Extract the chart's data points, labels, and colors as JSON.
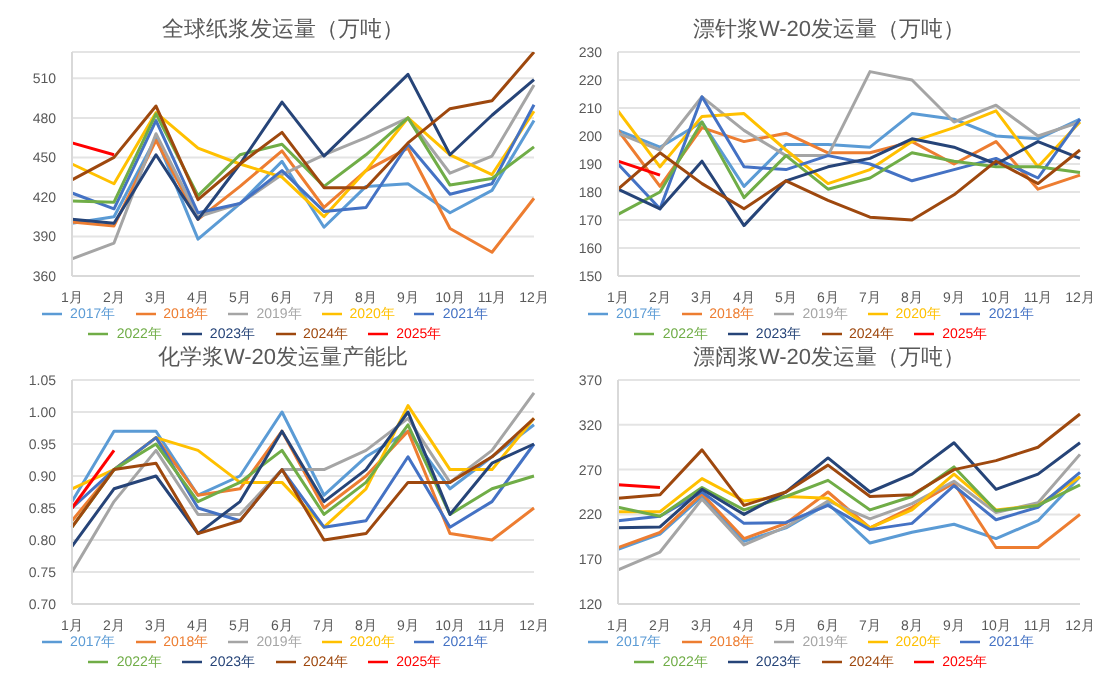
{
  "chart_data": [
    {
      "type": "line",
      "title": "全球纸浆发运量（万吨）",
      "categories": [
        "1月",
        "2月",
        "3月",
        "4月",
        "5月",
        "6月",
        "7月",
        "8月",
        "9月",
        "10月",
        "11月",
        "12月"
      ],
      "ylim": [
        360,
        530
      ],
      "yticks": [
        360,
        390,
        420,
        450,
        480,
        510
      ],
      "grid": "y",
      "legend": "bottom",
      "marker": "none",
      "line_style": "solid",
      "series": [
        {
          "name": "2017年",
          "color": "#5b9bd5",
          "values": [
            400,
            405,
            465,
            388,
            415,
            447,
            397,
            428,
            430,
            408,
            425,
            478
          ]
        },
        {
          "name": "2018年",
          "color": "#ed7d31",
          "values": [
            401,
            398,
            463,
            403,
            428,
            455,
            412,
            440,
            457,
            396,
            378,
            419
          ]
        },
        {
          "name": "2019年",
          "color": "#a5a5a5",
          "values": [
            373,
            385,
            468,
            405,
            415,
            437,
            452,
            465,
            480,
            438,
            451,
            505
          ]
        },
        {
          "name": "2020年",
          "color": "#ffc000",
          "values": [
            445,
            430,
            484,
            457,
            445,
            435,
            405,
            440,
            480,
            452,
            437,
            485
          ]
        },
        {
          "name": "2021年",
          "color": "#4472c4",
          "values": [
            423,
            411,
            478,
            408,
            415,
            440,
            409,
            412,
            460,
            422,
            430,
            490
          ]
        },
        {
          "name": "2022年",
          "color": "#70ad47",
          "values": [
            417,
            416,
            483,
            421,
            452,
            460,
            428,
            452,
            480,
            429,
            434,
            458
          ]
        },
        {
          "name": "2023年",
          "color": "#264478",
          "values": [
            403,
            400,
            452,
            403,
            445,
            492,
            451,
            482,
            513,
            452,
            482,
            509
          ]
        },
        {
          "name": "2024年",
          "color": "#9e480e",
          "values": [
            433,
            450,
            489,
            418,
            445,
            469,
            427,
            427,
            461,
            487,
            493,
            530
          ]
        },
        {
          "name": "2025年",
          "color": "#ff0000",
          "values": [
            461,
            452,
            null,
            null,
            null,
            null,
            null,
            null,
            null,
            null,
            null,
            null
          ]
        }
      ]
    },
    {
      "type": "line",
      "title": "漂针浆W-20发运量（万吨）",
      "categories": [
        "1月",
        "2月",
        "3月",
        "4月",
        "5月",
        "6月",
        "7月",
        "8月",
        "9月",
        "10月",
        "11月",
        "12月"
      ],
      "ylim": [
        150,
        230
      ],
      "yticks": [
        150,
        160,
        170,
        180,
        190,
        200,
        210,
        220,
        230
      ],
      "grid": "y",
      "legend": "bottom",
      "marker": "none",
      "line_style": "solid",
      "series": [
        {
          "name": "2017年",
          "color": "#5b9bd5",
          "values": [
            202,
            196,
            205,
            182,
            197,
            197,
            196,
            208,
            206,
            200,
            199,
            206
          ]
        },
        {
          "name": "2018年",
          "color": "#ed7d31",
          "values": [
            202,
            182,
            203,
            198,
            201,
            194,
            194,
            198,
            190,
            198,
            181,
            186
          ]
        },
        {
          "name": "2019年",
          "color": "#a5a5a5",
          "values": [
            201,
            195,
            214,
            202,
            193,
            193,
            223,
            220,
            205,
            211,
            200,
            205
          ]
        },
        {
          "name": "2020年",
          "color": "#ffc000",
          "values": [
            209,
            189,
            207,
            208,
            195,
            183,
            188,
            198,
            203,
            209,
            189,
            205
          ]
        },
        {
          "name": "2021年",
          "color": "#4472c4",
          "values": [
            190,
            174,
            214,
            189,
            188,
            193,
            190,
            184,
            188,
            192,
            185,
            206
          ]
        },
        {
          "name": "2022年",
          "color": "#70ad47",
          "values": [
            172,
            180,
            205,
            178,
            193,
            181,
            185,
            194,
            191,
            189,
            189,
            187
          ]
        },
        {
          "name": "2023年",
          "color": "#264478",
          "values": [
            181,
            174,
            191,
            168,
            184,
            189,
            192,
            199,
            196,
            190,
            198,
            192
          ]
        },
        {
          "name": "2024年",
          "color": "#9e480e",
          "values": [
            181,
            194,
            183,
            174,
            184,
            177,
            171,
            170,
            179,
            191,
            183,
            195
          ]
        },
        {
          "name": "2025年",
          "color": "#ff0000",
          "values": [
            191,
            186,
            null,
            null,
            null,
            null,
            null,
            null,
            null,
            null,
            null,
            null
          ]
        }
      ]
    },
    {
      "type": "line",
      "title": "化学浆W-20发运量产能比",
      "categories": [
        "1月",
        "2月",
        "3月",
        "4月",
        "5月",
        "6月",
        "7月",
        "8月",
        "9月",
        "10月",
        "11月",
        "12月"
      ],
      "ylim": [
        0.7,
        1.05
      ],
      "yticks": [
        {
          "value": 0.7,
          "label": "0.70"
        },
        {
          "value": 0.75,
          "label": "0.75"
        },
        {
          "value": 0.8,
          "label": "0.80"
        },
        {
          "value": 0.85,
          "label": "0.85"
        },
        {
          "value": 0.9,
          "label": "0.90"
        },
        {
          "value": 0.95,
          "label": "0.95"
        },
        {
          "value": 1.0,
          "label": "1.00"
        },
        {
          "value": 1.05,
          "label": "1.05"
        }
      ],
      "grid": "y",
      "legend": "bottom",
      "marker": "none",
      "line_style": "solid",
      "series": [
        {
          "name": "2017年",
          "color": "#5b9bd5",
          "values": [
            0.86,
            0.97,
            0.97,
            0.87,
            0.9,
            1.0,
            0.87,
            0.93,
            0.97,
            0.88,
            0.93,
            0.98
          ]
        },
        {
          "name": "2018年",
          "color": "#ed7d31",
          "values": [
            0.83,
            0.91,
            0.96,
            0.87,
            0.88,
            0.97,
            0.85,
            0.9,
            0.97,
            0.81,
            0.8,
            0.85
          ]
        },
        {
          "name": "2019年",
          "color": "#a5a5a5",
          "values": [
            0.75,
            0.86,
            0.94,
            0.84,
            0.84,
            0.91,
            0.91,
            0.94,
            0.99,
            0.89,
            0.94,
            1.03
          ]
        },
        {
          "name": "2020年",
          "color": "#ffc000",
          "values": [
            0.88,
            0.91,
            0.96,
            0.94,
            0.89,
            0.89,
            0.82,
            0.88,
            1.01,
            0.91,
            0.91,
            0.99
          ]
        },
        {
          "name": "2021年",
          "color": "#4472c4",
          "values": [
            0.85,
            0.91,
            0.96,
            0.85,
            0.83,
            0.91,
            0.82,
            0.83,
            0.93,
            0.82,
            0.86,
            0.95
          ]
        },
        {
          "name": "2022年",
          "color": "#70ad47",
          "values": [
            0.82,
            0.91,
            0.95,
            0.86,
            0.89,
            0.94,
            0.84,
            0.89,
            0.98,
            0.84,
            0.88,
            0.9
          ]
        },
        {
          "name": "2023年",
          "color": "#264478",
          "values": [
            0.79,
            0.88,
            0.9,
            0.81,
            0.86,
            0.97,
            0.86,
            0.91,
            1.0,
            0.84,
            0.92,
            0.95
          ]
        },
        {
          "name": "2024年",
          "color": "#9e480e",
          "values": [
            0.82,
            0.91,
            0.92,
            0.81,
            0.83,
            0.91,
            0.8,
            0.81,
            0.89,
            0.89,
            0.93,
            0.99
          ]
        },
        {
          "name": "2025年",
          "color": "#ff0000",
          "values": [
            0.85,
            0.94,
            null,
            null,
            null,
            null,
            null,
            null,
            null,
            null,
            null,
            null
          ]
        }
      ]
    },
    {
      "type": "line",
      "title": "漂阔浆W-20发运量（万吨）",
      "categories": [
        "1月",
        "2月",
        "3月",
        "4月",
        "5月",
        "6月",
        "7月",
        "8月",
        "9月",
        "10月",
        "11月",
        "12月"
      ],
      "ylim": [
        120,
        370
      ],
      "yticks": [
        120,
        170,
        220,
        270,
        320,
        370
      ],
      "grid": "y",
      "legend": "bottom",
      "marker": "none",
      "line_style": "solid",
      "series": [
        {
          "name": "2017年",
          "color": "#5b9bd5",
          "values": [
            181,
            198,
            240,
            190,
            205,
            232,
            188,
            200,
            209,
            193,
            213,
            262
          ]
        },
        {
          "name": "2018年",
          "color": "#ed7d31",
          "values": [
            183,
            200,
            243,
            193,
            210,
            245,
            205,
            228,
            255,
            183,
            183,
            220
          ]
        },
        {
          "name": "2019年",
          "color": "#a5a5a5",
          "values": [
            158,
            178,
            237,
            186,
            206,
            235,
            215,
            232,
            257,
            222,
            233,
            287
          ]
        },
        {
          "name": "2020年",
          "color": "#ffc000",
          "values": [
            223,
            223,
            260,
            235,
            240,
            238,
            205,
            225,
            265,
            225,
            230,
            262
          ]
        },
        {
          "name": "2021年",
          "color": "#4472c4",
          "values": [
            213,
            218,
            245,
            210,
            211,
            230,
            203,
            210,
            252,
            214,
            228,
            267
          ]
        },
        {
          "name": "2022年",
          "color": "#70ad47",
          "values": [
            228,
            218,
            250,
            225,
            240,
            258,
            225,
            240,
            273,
            224,
            230,
            253
          ]
        },
        {
          "name": "2023年",
          "color": "#264478",
          "values": [
            205,
            206,
            248,
            220,
            245,
            283,
            245,
            265,
            300,
            248,
            265,
            300
          ]
        },
        {
          "name": "2024年",
          "color": "#9e480e",
          "values": [
            238,
            242,
            292,
            230,
            245,
            275,
            240,
            242,
            270,
            280,
            295,
            332
          ]
        },
        {
          "name": "2025年",
          "color": "#ff0000",
          "values": [
            253,
            250,
            null,
            null,
            null,
            null,
            null,
            null,
            null,
            null,
            null,
            null
          ]
        }
      ]
    }
  ]
}
